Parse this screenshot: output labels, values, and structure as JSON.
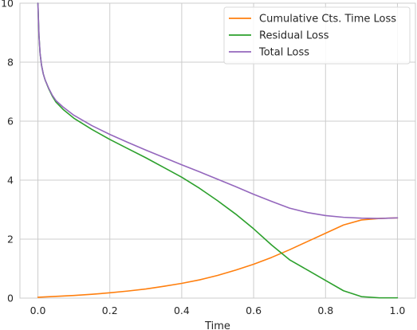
{
  "chart_data": {
    "type": "line",
    "title": "",
    "xlabel": "Time",
    "ylabel": "",
    "xlim": [
      -0.05,
      1.05
    ],
    "ylim": [
      0,
      10
    ],
    "xticks": [
      0.0,
      0.2,
      0.4,
      0.6,
      0.8,
      1.0
    ],
    "xtick_labels": [
      "0.0",
      "0.2",
      "0.4",
      "0.6",
      "0.8",
      "1.0"
    ],
    "yticks": [
      0,
      2,
      4,
      6,
      8,
      10
    ],
    "ytick_labels": [
      "0",
      "2",
      "4",
      "6",
      "8",
      "10"
    ],
    "grid": true,
    "legend_position": "top-right",
    "series": [
      {
        "name": "Cumulative Cts. Time Loss",
        "color": "#ff7f0e",
        "x": [
          0.0,
          0.05,
          0.1,
          0.15,
          0.2,
          0.25,
          0.3,
          0.35,
          0.4,
          0.45,
          0.5,
          0.55,
          0.6,
          0.65,
          0.7,
          0.75,
          0.8,
          0.85,
          0.9,
          0.95,
          1.0
        ],
        "y": [
          0.03,
          0.06,
          0.09,
          0.13,
          0.18,
          0.24,
          0.31,
          0.4,
          0.5,
          0.62,
          0.77,
          0.95,
          1.15,
          1.38,
          1.64,
          1.92,
          2.2,
          2.48,
          2.65,
          2.7,
          2.72
        ]
      },
      {
        "name": "Residual Loss",
        "color": "#2ca02c",
        "x": [
          0.0,
          0.003,
          0.006,
          0.01,
          0.015,
          0.02,
          0.03,
          0.04,
          0.05,
          0.07,
          0.1,
          0.15,
          0.2,
          0.25,
          0.3,
          0.35,
          0.4,
          0.45,
          0.5,
          0.55,
          0.6,
          0.65,
          0.7,
          0.75,
          0.8,
          0.85,
          0.9,
          0.95,
          1.0
        ],
        "y": [
          10.0,
          8.9,
          8.3,
          7.9,
          7.6,
          7.4,
          7.1,
          6.85,
          6.65,
          6.4,
          6.1,
          5.72,
          5.38,
          5.07,
          4.76,
          4.43,
          4.1,
          3.72,
          3.3,
          2.85,
          2.35,
          1.8,
          1.3,
          0.95,
          0.6,
          0.25,
          0.05,
          0.01,
          0.01
        ]
      },
      {
        "name": "Total Loss",
        "color": "#9467bd",
        "x": [
          0.0,
          0.003,
          0.006,
          0.01,
          0.015,
          0.02,
          0.03,
          0.04,
          0.05,
          0.07,
          0.1,
          0.15,
          0.2,
          0.25,
          0.3,
          0.35,
          0.4,
          0.45,
          0.5,
          0.55,
          0.6,
          0.65,
          0.7,
          0.75,
          0.8,
          0.85,
          0.9,
          0.95,
          1.0
        ],
        "y": [
          10.0,
          8.9,
          8.3,
          7.9,
          7.6,
          7.4,
          7.12,
          6.88,
          6.7,
          6.48,
          6.2,
          5.85,
          5.55,
          5.28,
          5.02,
          4.77,
          4.52,
          4.28,
          4.03,
          3.78,
          3.52,
          3.28,
          3.05,
          2.9,
          2.8,
          2.74,
          2.71,
          2.7,
          2.72
        ]
      }
    ]
  }
}
